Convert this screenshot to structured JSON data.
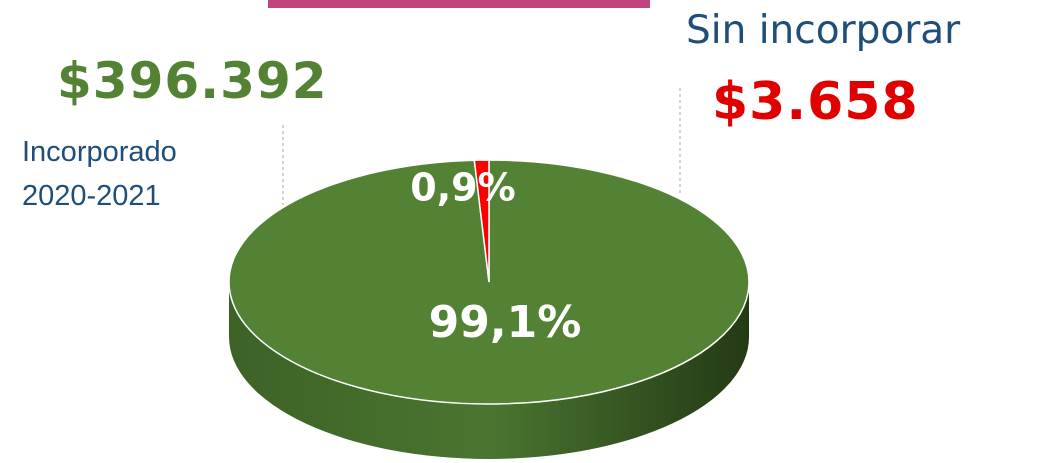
{
  "chart_data": {
    "type": "pie3d",
    "categories": [
      "Incorporado 2020-2021",
      "Sin incorporar"
    ],
    "amount_labels": [
      "$396.392",
      "$3.658"
    ],
    "values": [
      99.1,
      0.9
    ],
    "value_labels": [
      "99,1%",
      "0,9%"
    ],
    "colors": [
      "#548235",
      "#ff0000"
    ]
  }
}
